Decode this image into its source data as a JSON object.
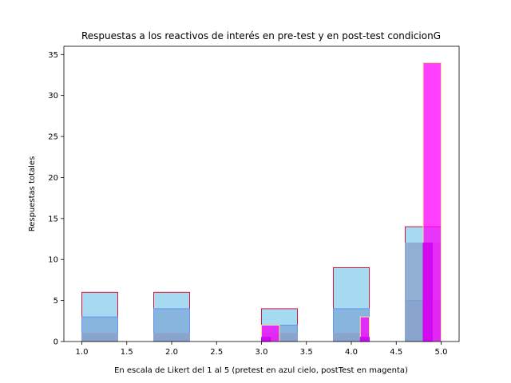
{
  "chart_data": {
    "type": "bar",
    "title": "Respuestas a los reactivos de interés en pre-test y en post-test condicionG",
    "xlabel": "En escala de Likert del 1 al 5 (pretest en azul cielo, postTest en magenta)",
    "ylabel": "Respuestas totales",
    "xlim": [
      0.8,
      5.2
    ],
    "ylim": [
      0,
      36
    ],
    "xticks": [
      "1.0",
      "1.5",
      "2.0",
      "2.5",
      "3.0",
      "3.5",
      "4.0",
      "4.5",
      "5.0"
    ],
    "xtick_values": [
      1.0,
      1.5,
      2.0,
      2.5,
      3.0,
      3.5,
      4.0,
      4.5,
      5.0
    ],
    "yticks": [
      "0",
      "5",
      "10",
      "15",
      "20",
      "25",
      "30",
      "35"
    ],
    "ytick_values": [
      0,
      5,
      10,
      15,
      20,
      25,
      30,
      35
    ],
    "grid": false,
    "series": [
      {
        "color": "#87ceeb",
        "edge": "#dc143c",
        "bins": [
          [
            1.0,
            1.4,
            6
          ],
          [
            1.4,
            1.8,
            0
          ],
          [
            1.8,
            2.2,
            6
          ],
          [
            2.2,
            2.6,
            0
          ],
          [
            2.6,
            3.0,
            0
          ],
          [
            3.0,
            3.4,
            4
          ],
          [
            3.4,
            3.8,
            0
          ],
          [
            3.8,
            4.2,
            9
          ],
          [
            4.2,
            4.6,
            0
          ],
          [
            4.6,
            5.0,
            14
          ]
        ]
      },
      {
        "color": "#7fa8d8",
        "edge": "#6495ed",
        "bins": [
          [
            1.0,
            1.4,
            3
          ],
          [
            1.4,
            1.8,
            0
          ],
          [
            1.8,
            2.2,
            4
          ],
          [
            2.2,
            2.6,
            0
          ],
          [
            2.6,
            3.0,
            0
          ],
          [
            3.0,
            3.4,
            2
          ],
          [
            3.4,
            3.8,
            0
          ],
          [
            3.8,
            4.2,
            4
          ],
          [
            4.2,
            4.6,
            0
          ],
          [
            4.6,
            5.0,
            5
          ]
        ]
      },
      {
        "color": "#8aa0c8",
        "edge": "#8fa5cc",
        "bins": [
          [
            1.0,
            1.4,
            1
          ],
          [
            1.4,
            1.8,
            0
          ],
          [
            1.8,
            2.2,
            1
          ],
          [
            2.2,
            2.6,
            0
          ],
          [
            2.6,
            3.0,
            0
          ],
          [
            3.0,
            3.4,
            1
          ],
          [
            3.4,
            3.8,
            0
          ],
          [
            3.8,
            4.2,
            1
          ],
          [
            4.2,
            4.6,
            0
          ],
          [
            4.6,
            5.0,
            12
          ]
        ]
      },
      {
        "color": "#ff00ff",
        "edge": "#f0e68c",
        "bins": [
          [
            3.0,
            3.2,
            2
          ],
          [
            4.1,
            4.2,
            3
          ],
          [
            4.8,
            5.0,
            34
          ]
        ]
      },
      {
        "color": "#cc00ee",
        "edge": "#cc00ee",
        "bins": [
          [
            3.0,
            3.1,
            0.5
          ],
          [
            4.1,
            4.2,
            0.5
          ],
          [
            4.8,
            4.9,
            12
          ]
        ]
      }
    ]
  }
}
